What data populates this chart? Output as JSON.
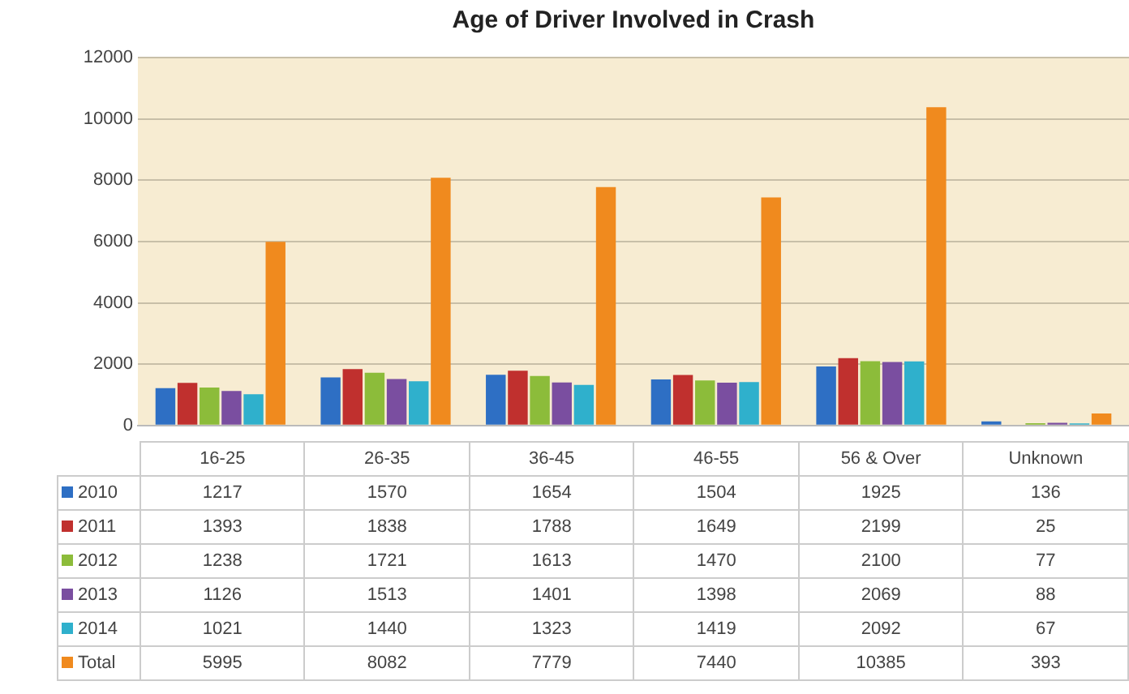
{
  "chart_data": {
    "type": "bar",
    "title": "Age of Driver Involved in Crash",
    "categories": [
      "16-25",
      "26-35",
      "36-45",
      "46-55",
      "56 & Over",
      "Unknown"
    ],
    "series": [
      {
        "name": "2010",
        "color": "#2e6fc4",
        "values": [
          1217,
          1570,
          1654,
          1504,
          1925,
          136
        ]
      },
      {
        "name": "2011",
        "color": "#c0302e",
        "values": [
          1393,
          1838,
          1788,
          1649,
          2199,
          25
        ]
      },
      {
        "name": "2012",
        "color": "#8cbc3a",
        "values": [
          1238,
          1721,
          1613,
          1470,
          2100,
          77
        ]
      },
      {
        "name": "2013",
        "color": "#7a4ea0",
        "values": [
          1126,
          1513,
          1401,
          1398,
          2069,
          88
        ]
      },
      {
        "name": "2014",
        "color": "#2fb0cc",
        "values": [
          1021,
          1440,
          1323,
          1419,
          2092,
          67
        ]
      },
      {
        "name": "Total",
        "color": "#f08a1e",
        "values": [
          5995,
          8082,
          7779,
          7440,
          10385,
          393
        ]
      }
    ],
    "ylim": [
      0,
      12000
    ],
    "yticks": [
      0,
      2000,
      4000,
      6000,
      8000,
      10000,
      12000
    ],
    "grid": "y",
    "legend": "bottom",
    "data_labels": true
  }
}
